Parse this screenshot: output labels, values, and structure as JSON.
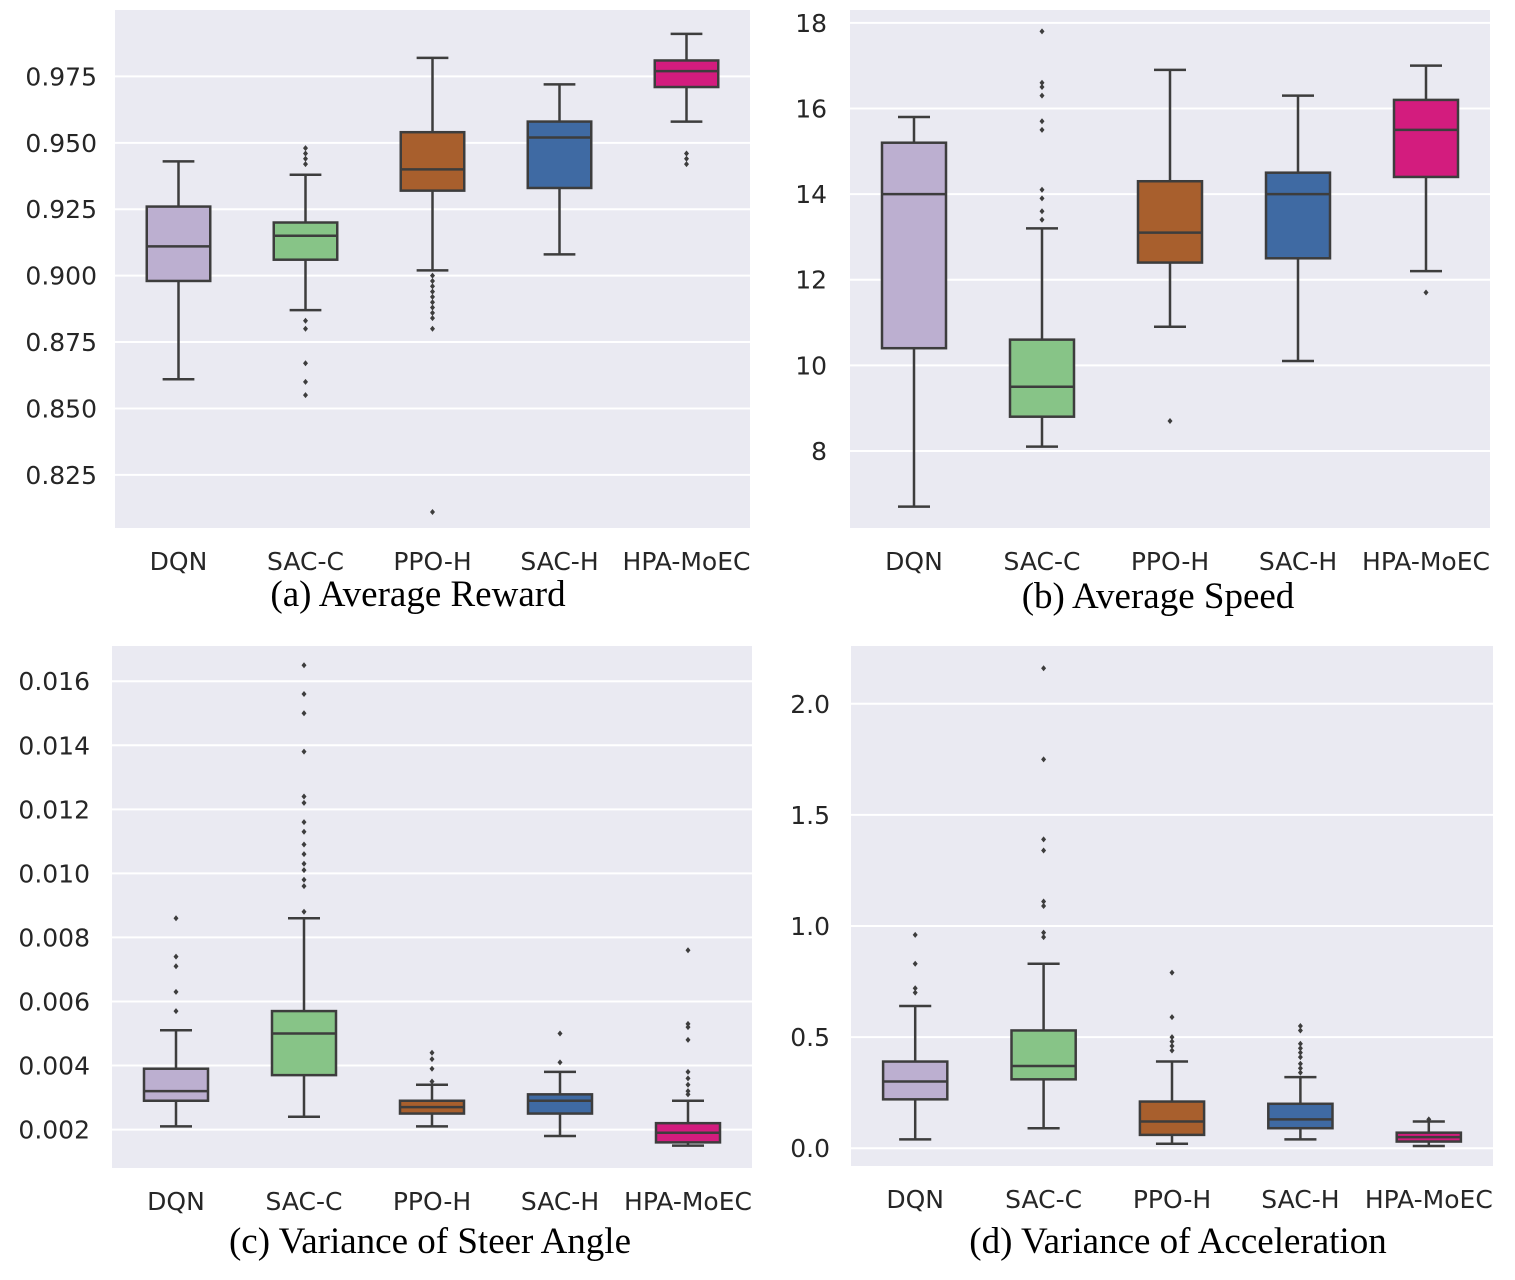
{
  "chart_data": [
    {
      "type": "box",
      "caption": "(a) Average Reward",
      "categories": [
        "DQN",
        "SAC-C",
        "PPO-H",
        "SAC-H",
        "HPA-MoEC"
      ],
      "colors": [
        "#bcafd0",
        "#87c487",
        "#a85f2d",
        "#3f6aa3",
        "#d31c7e"
      ],
      "ylim": [
        0.805,
        1.0
      ],
      "yticks": [
        0.825,
        0.85,
        0.875,
        0.9,
        0.925,
        0.95,
        0.975
      ],
      "ytick_labels": [
        "0.825",
        "0.850",
        "0.875",
        "0.900",
        "0.925",
        "0.950",
        "0.975"
      ],
      "boxes": [
        {
          "min": 0.861,
          "q1": 0.898,
          "median": 0.911,
          "q3": 0.926,
          "max": 0.943,
          "outliers": []
        },
        {
          "min": 0.887,
          "q1": 0.906,
          "median": 0.915,
          "q3": 0.92,
          "max": 0.938,
          "outliers": [
            0.942,
            0.944,
            0.946,
            0.948,
            0.883,
            0.88,
            0.867,
            0.86,
            0.855
          ]
        },
        {
          "min": 0.902,
          "q1": 0.932,
          "median": 0.94,
          "q3": 0.954,
          "max": 0.982,
          "outliers": [
            0.9,
            0.898,
            0.896,
            0.894,
            0.892,
            0.89,
            0.888,
            0.886,
            0.884,
            0.88,
            0.811
          ]
        },
        {
          "min": 0.908,
          "q1": 0.933,
          "median": 0.952,
          "q3": 0.958,
          "max": 0.972,
          "outliers": []
        },
        {
          "min": 0.958,
          "q1": 0.971,
          "median": 0.977,
          "q3": 0.981,
          "max": 0.991,
          "outliers": [
            0.946,
            0.944,
            0.942
          ]
        }
      ]
    },
    {
      "type": "box",
      "caption": "(b) Average Speed",
      "categories": [
        "DQN",
        "SAC-C",
        "PPO-H",
        "SAC-H",
        "HPA-MoEC"
      ],
      "colors": [
        "#bcafd0",
        "#87c487",
        "#a85f2d",
        "#3f6aa3",
        "#d31c7e"
      ],
      "ylim": [
        6.2,
        18.3
      ],
      "yticks": [
        8,
        10,
        12,
        14,
        16,
        18
      ],
      "ytick_labels": [
        "8",
        "10",
        "12",
        "14",
        "16",
        "18"
      ],
      "boxes": [
        {
          "min": 6.7,
          "q1": 10.4,
          "median": 14.0,
          "q3": 15.2,
          "max": 15.8,
          "outliers": []
        },
        {
          "min": 8.1,
          "q1": 8.8,
          "median": 9.5,
          "q3": 10.6,
          "max": 13.2,
          "outliers": [
            17.8,
            16.6,
            16.5,
            16.3,
            15.7,
            15.5,
            14.1,
            13.9,
            13.6,
            13.4
          ]
        },
        {
          "min": 10.9,
          "q1": 12.4,
          "median": 13.1,
          "q3": 14.3,
          "max": 16.9,
          "outliers": [
            8.7
          ]
        },
        {
          "min": 10.1,
          "q1": 12.5,
          "median": 14.0,
          "q3": 14.5,
          "max": 16.3,
          "outliers": []
        },
        {
          "min": 12.2,
          "q1": 14.4,
          "median": 15.5,
          "q3": 16.2,
          "max": 17.0,
          "outliers": [
            11.7
          ]
        }
      ]
    },
    {
      "type": "box",
      "caption": "(c) Variance of Steer Angle",
      "categories": [
        "DQN",
        "SAC-C",
        "PPO-H",
        "SAC-H",
        "HPA-MoEC"
      ],
      "colors": [
        "#bcafd0",
        "#87c487",
        "#a85f2d",
        "#3f6aa3",
        "#d31c7e"
      ],
      "ylim": [
        0.0008,
        0.0171
      ],
      "yticks": [
        0.002,
        0.004,
        0.006,
        0.008,
        0.01,
        0.012,
        0.014,
        0.016
      ],
      "ytick_labels": [
        "0.002",
        "0.004",
        "0.006",
        "0.008",
        "0.010",
        "0.012",
        "0.014",
        "0.016"
      ],
      "boxes": [
        {
          "min": 0.0021,
          "q1": 0.0029,
          "median": 0.0032,
          "q3": 0.0039,
          "max": 0.0051,
          "outliers": [
            0.0086,
            0.0074,
            0.0071,
            0.0063,
            0.0057
          ]
        },
        {
          "min": 0.0024,
          "q1": 0.0037,
          "median": 0.005,
          "q3": 0.0057,
          "max": 0.0086,
          "outliers": [
            0.0165,
            0.0156,
            0.015,
            0.0138,
            0.0124,
            0.0122,
            0.0116,
            0.0113,
            0.0109,
            0.0106,
            0.0103,
            0.0101,
            0.0098,
            0.0096,
            0.0088
          ]
        },
        {
          "min": 0.0021,
          "q1": 0.0025,
          "median": 0.0027,
          "q3": 0.0029,
          "max": 0.0034,
          "outliers": [
            0.0044,
            0.0042,
            0.0039,
            0.0035
          ]
        },
        {
          "min": 0.0018,
          "q1": 0.0025,
          "median": 0.0029,
          "q3": 0.0031,
          "max": 0.0038,
          "outliers": [
            0.005,
            0.0041
          ]
        },
        {
          "min": 0.0015,
          "q1": 0.0016,
          "median": 0.0019,
          "q3": 0.0022,
          "max": 0.0029,
          "outliers": [
            0.0076,
            0.0053,
            0.0052,
            0.0048,
            0.0038,
            0.0036,
            0.0034,
            0.0032,
            0.0031
          ]
        }
      ]
    },
    {
      "type": "box",
      "caption": "(d) Variance of Acceleration",
      "categories": [
        "DQN",
        "SAC-C",
        "PPO-H",
        "SAC-H",
        "HPA-MoEC"
      ],
      "colors": [
        "#bcafd0",
        "#87c487",
        "#a85f2d",
        "#3f6aa3",
        "#d31c7e"
      ],
      "ylim": [
        -0.08,
        2.26
      ],
      "yticks": [
        0.0,
        0.5,
        1.0,
        1.5,
        2.0
      ],
      "ytick_labels": [
        "0.0",
        "0.5",
        "1.0",
        "1.5",
        "2.0"
      ],
      "boxes": [
        {
          "min": 0.04,
          "q1": 0.22,
          "median": 0.3,
          "q3": 0.39,
          "max": 0.64,
          "outliers": [
            0.96,
            0.83,
            0.72,
            0.7
          ]
        },
        {
          "min": 0.09,
          "q1": 0.31,
          "median": 0.37,
          "q3": 0.53,
          "max": 0.83,
          "outliers": [
            2.16,
            1.75,
            1.39,
            1.34,
            1.11,
            1.09,
            0.97,
            0.95
          ]
        },
        {
          "min": 0.02,
          "q1": 0.06,
          "median": 0.12,
          "q3": 0.21,
          "max": 0.39,
          "outliers": [
            0.79,
            0.59,
            0.5,
            0.48,
            0.46,
            0.44
          ]
        },
        {
          "min": 0.04,
          "q1": 0.09,
          "median": 0.13,
          "q3": 0.2,
          "max": 0.32,
          "outliers": [
            0.55,
            0.53,
            0.47,
            0.45,
            0.43,
            0.41,
            0.38,
            0.36,
            0.34
          ]
        },
        {
          "min": 0.01,
          "q1": 0.03,
          "median": 0.05,
          "q3": 0.07,
          "max": 0.12,
          "outliers": [
            0.13
          ]
        }
      ]
    }
  ]
}
